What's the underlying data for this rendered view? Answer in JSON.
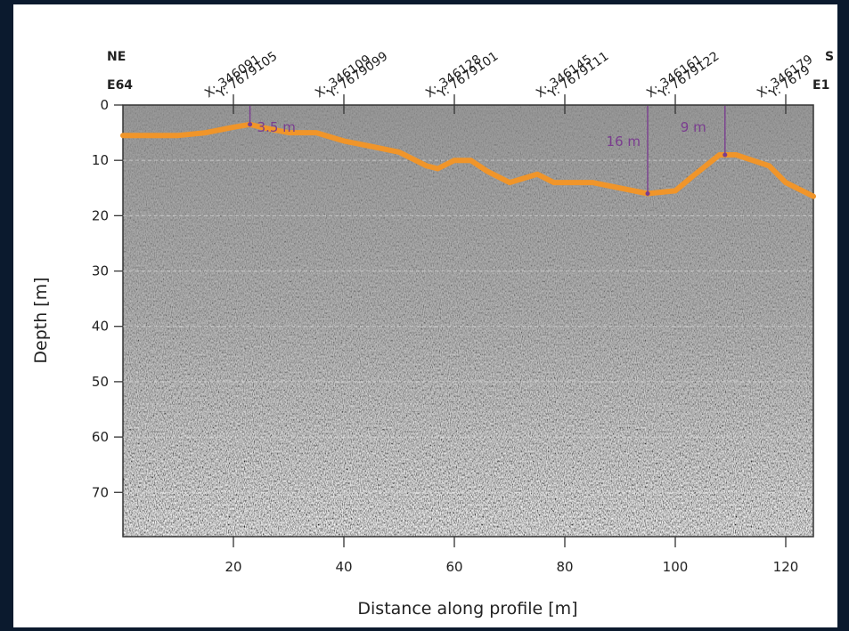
{
  "chart_data": {
    "type": "line",
    "x": [
      0,
      10,
      15,
      20,
      23,
      25,
      30,
      35,
      40,
      45,
      50,
      55,
      57,
      60,
      63,
      66,
      70,
      75,
      78,
      85,
      90,
      95,
      100,
      103,
      108,
      111,
      114,
      117,
      120,
      125
    ],
    "values": [
      5.5,
      5.5,
      5,
      4,
      3.5,
      4,
      5,
      5,
      6.5,
      7.5,
      8.5,
      11,
      11.5,
      10,
      10,
      12,
      14,
      12.5,
      14,
      14,
      15,
      16,
      15.5,
      13,
      9,
      9,
      10,
      11,
      14,
      16.5
    ],
    "color": "#f0952a",
    "xlabel": "Distance along profile [m]",
    "ylabel": "Depth [m]",
    "xlim": [
      0,
      125
    ],
    "ylim": [
      0,
      78
    ],
    "inverted_y": true,
    "xticks": [
      20,
      40,
      60,
      80,
      100,
      120
    ],
    "yticks": [
      0,
      10,
      20,
      30,
      40,
      50,
      60,
      70
    ],
    "grid": true,
    "top_labels": [
      [
        "X: 346091",
        "Y: 7679105"
      ],
      [
        "X: 346109",
        "Y: 7679099"
      ],
      [
        "X: 346128",
        "Y: 7679101"
      ],
      [
        "X: 346145",
        "Y: 7679111"
      ],
      [
        "X: 346161",
        "Y: 7679122"
      ],
      [
        "X: 346179",
        "Y: 7679"
      ]
    ],
    "side_labels": {
      "left": [
        "NE",
        "E64"
      ],
      "right": [
        "S",
        "E1"
      ]
    },
    "annotations": [
      {
        "label": "3.5 m",
        "x": 23,
        "value": 3.5
      },
      {
        "label": "16 m",
        "x": 95,
        "value": 16
      },
      {
        "label": "9 m",
        "x": 109,
        "value": 9
      }
    ],
    "annotation_color": "#7a3d8f"
  }
}
